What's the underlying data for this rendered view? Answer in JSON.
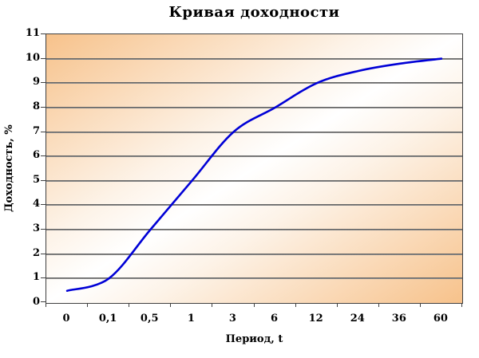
{
  "chart_data": {
    "type": "line",
    "title": "Кривая доходности",
    "xlabel": "Период, t",
    "ylabel": "Доходность, %",
    "categories": [
      "0",
      "0,1",
      "0,5",
      "1",
      "3",
      "6",
      "12",
      "24",
      "36",
      "60"
    ],
    "series": [
      {
        "values": [
          0.5,
          1,
          3,
          5,
          7,
          8,
          9,
          9.5,
          9.8,
          10
        ]
      }
    ],
    "ylim": [
      0,
      11
    ],
    "ytick_step": 1,
    "grid": true,
    "legend": "none",
    "smooth_line": true,
    "colors": {
      "line": "#0000d6",
      "plot_gradient_orange": "#f7c28b",
      "plot_gradient_white": "#ffffff",
      "gridline": "#6e6e6e",
      "plot_border": "#404040",
      "text": "#000000",
      "background": "#ffffff"
    }
  }
}
